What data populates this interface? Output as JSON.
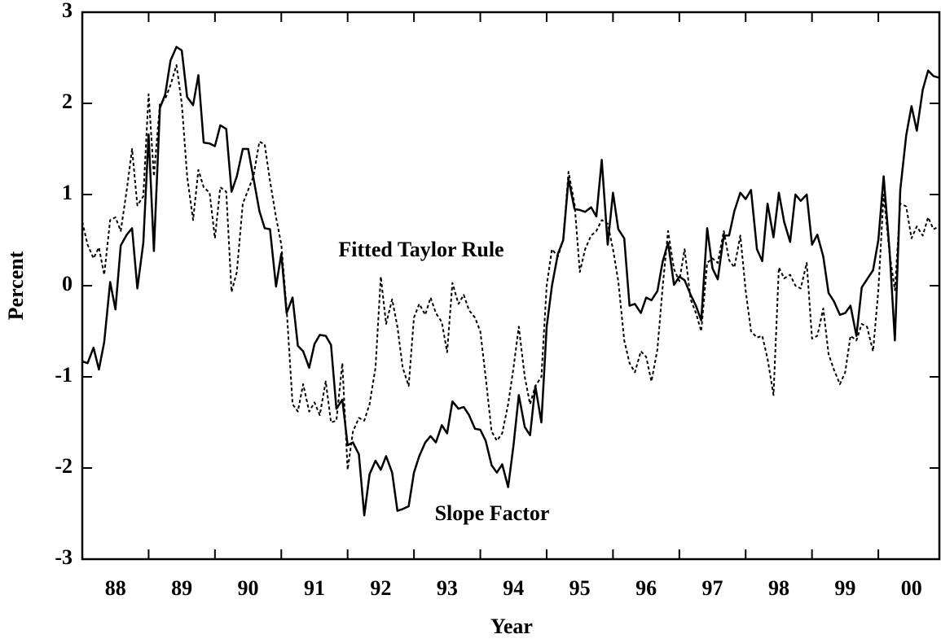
{
  "chart_data": {
    "type": "line",
    "xlabel": "Year",
    "ylabel": "Percent",
    "annotations": [
      {
        "text": "Fitted Taylor Rule"
      },
      {
        "text": "Slope Factor"
      }
    ],
    "x": [
      1988.0,
      1988.08,
      1988.17,
      1988.25,
      1988.33,
      1988.42,
      1988.5,
      1988.58,
      1988.67,
      1988.75,
      1988.83,
      1988.92,
      1989.0,
      1989.08,
      1989.17,
      1989.25,
      1989.33,
      1989.42,
      1989.5,
      1989.58,
      1989.67,
      1989.75,
      1989.83,
      1989.92,
      1990.0,
      1990.08,
      1990.17,
      1990.25,
      1990.33,
      1990.42,
      1990.5,
      1990.58,
      1990.67,
      1990.75,
      1990.83,
      1990.92,
      1991.0,
      1991.08,
      1991.17,
      1991.25,
      1991.33,
      1991.42,
      1991.5,
      1991.58,
      1991.67,
      1991.75,
      1991.83,
      1991.92,
      1992.0,
      1992.08,
      1992.17,
      1992.25,
      1992.33,
      1992.42,
      1992.5,
      1992.58,
      1992.67,
      1992.75,
      1992.83,
      1992.92,
      1993.0,
      1993.08,
      1993.17,
      1993.25,
      1993.33,
      1993.42,
      1993.5,
      1993.58,
      1993.67,
      1993.75,
      1993.83,
      1993.92,
      1994.0,
      1994.08,
      1994.17,
      1994.25,
      1994.33,
      1994.42,
      1994.5,
      1994.58,
      1994.67,
      1994.75,
      1994.83,
      1994.92,
      1995.0,
      1995.08,
      1995.17,
      1995.25,
      1995.33,
      1995.42,
      1995.5,
      1995.58,
      1995.67,
      1995.75,
      1995.83,
      1995.92,
      1996.0,
      1996.08,
      1996.17,
      1996.25,
      1996.33,
      1996.42,
      1996.5,
      1996.58,
      1996.67,
      1996.75,
      1996.83,
      1996.92,
      1997.0,
      1997.08,
      1997.17,
      1997.25,
      1997.33,
      1997.42,
      1997.5,
      1997.58,
      1997.67,
      1997.75,
      1997.83,
      1997.92,
      1998.0,
      1998.08,
      1998.17,
      1998.25,
      1998.33,
      1998.42,
      1998.5,
      1998.58,
      1998.67,
      1998.75,
      1998.83,
      1998.92,
      1999.0,
      1999.08,
      1999.17,
      1999.25,
      1999.33,
      1999.42,
      1999.5,
      1999.58,
      1999.67,
      1999.75,
      1999.83,
      1999.92,
      2000.0,
      2000.08,
      2000.17,
      2000.25,
      2000.33,
      2000.42,
      2000.5,
      2000.58,
      2000.67,
      2000.75,
      2000.83,
      2000.92
    ],
    "series": [
      {
        "name": "Slope Factor",
        "color": "#000000",
        "line_style": "solid",
        "values": [
          -0.83,
          -0.85,
          -0.68,
          -0.92,
          -0.62,
          0.04,
          -0.26,
          0.44,
          0.56,
          0.63,
          -0.03,
          0.47,
          1.66,
          0.38,
          1.95,
          2.1,
          2.47,
          2.62,
          2.58,
          2.07,
          1.98,
          2.31,
          1.57,
          1.56,
          1.53,
          1.76,
          1.72,
          1.03,
          1.2,
          1.5,
          1.5,
          1.18,
          0.82,
          0.63,
          0.62,
          -0.01,
          0.35,
          -0.3,
          -0.13,
          -0.66,
          -0.72,
          -0.9,
          -0.64,
          -0.54,
          -0.55,
          -0.65,
          -1.35,
          -1.25,
          -1.75,
          -1.72,
          -1.85,
          -2.52,
          -2.07,
          -1.92,
          -2.02,
          -1.87,
          -2.05,
          -2.47,
          -2.45,
          -2.42,
          -2.05,
          -1.87,
          -1.72,
          -1.65,
          -1.72,
          -1.53,
          -1.62,
          -1.27,
          -1.35,
          -1.33,
          -1.42,
          -1.57,
          -1.58,
          -1.7,
          -1.97,
          -2.05,
          -1.96,
          -2.21,
          -1.75,
          -1.2,
          -1.55,
          -1.64,
          -1.1,
          -1.5,
          -0.45,
          0.0,
          0.35,
          0.5,
          1.17,
          0.84,
          0.83,
          0.81,
          0.86,
          0.76,
          1.38,
          0.45,
          1.02,
          0.62,
          0.52,
          -0.22,
          -0.2,
          -0.3,
          -0.13,
          -0.16,
          -0.06,
          0.27,
          0.47,
          0.01,
          0.1,
          0.06,
          -0.1,
          -0.22,
          -0.38,
          0.63,
          0.19,
          0.07,
          0.55,
          0.55,
          0.82,
          1.02,
          0.95,
          1.05,
          0.4,
          0.27,
          0.9,
          0.53,
          1.02,
          0.7,
          0.48,
          1.0,
          0.93,
          1.0,
          0.45,
          0.56,
          0.32,
          -0.08,
          -0.17,
          -0.32,
          -0.3,
          -0.22,
          -0.55,
          -0.02,
          0.07,
          0.17,
          0.5,
          1.2,
          0.38,
          -0.6,
          1.05,
          1.65,
          1.97,
          1.7,
          2.15,
          2.36,
          2.3,
          2.28
        ]
      },
      {
        "name": "Fitted Taylor Rule",
        "color": "#000000",
        "line_style": "dotted",
        "values": [
          0.7,
          0.45,
          0.3,
          0.42,
          0.12,
          0.72,
          0.75,
          0.6,
          1.05,
          1.5,
          0.88,
          0.98,
          2.1,
          1.2,
          2.0,
          2.05,
          2.2,
          2.42,
          2.0,
          1.2,
          0.72,
          1.27,
          1.08,
          1.02,
          0.52,
          1.08,
          1.03,
          -0.07,
          0.15,
          0.9,
          1.05,
          1.2,
          1.58,
          1.55,
          1.15,
          0.75,
          0.45,
          -0.25,
          -1.3,
          -1.38,
          -1.08,
          -1.38,
          -1.28,
          -1.42,
          -1.05,
          -1.5,
          -1.48,
          -0.85,
          -2.02,
          -1.6,
          -1.45,
          -1.48,
          -1.3,
          -0.9,
          0.1,
          -0.42,
          -0.15,
          -0.45,
          -0.9,
          -1.1,
          -0.35,
          -0.2,
          -0.32,
          -0.13,
          -0.3,
          -0.4,
          -0.73,
          0.03,
          -0.2,
          -0.1,
          -0.27,
          -0.35,
          -0.5,
          -1.0,
          -1.6,
          -1.7,
          -1.62,
          -1.3,
          -0.9,
          -0.45,
          -1.0,
          -1.3,
          -1.1,
          -1.0,
          0.0,
          0.4,
          0.32,
          0.5,
          1.25,
          0.9,
          0.15,
          0.4,
          0.55,
          0.6,
          0.72,
          0.68,
          0.4,
          0.05,
          -0.6,
          -0.85,
          -0.95,
          -0.72,
          -0.78,
          -1.05,
          -0.7,
          0.0,
          0.6,
          0.18,
          0.05,
          0.4,
          -0.15,
          -0.3,
          -0.5,
          0.25,
          0.3,
          0.25,
          0.6,
          0.28,
          0.2,
          0.55,
          -0.05,
          -0.5,
          -0.57,
          -0.55,
          -0.8,
          -1.2,
          0.2,
          0.08,
          0.12,
          0.0,
          -0.03,
          0.25,
          -0.58,
          -0.55,
          -0.25,
          -0.75,
          -0.92,
          -1.08,
          -0.95,
          -0.55,
          -0.6,
          -0.42,
          -0.45,
          -0.72,
          -0.05,
          1.0,
          0.35,
          -0.05,
          0.9,
          0.87,
          0.52,
          0.65,
          0.55,
          0.75,
          0.62,
          0.65
        ]
      }
    ],
    "xlim": [
      1988,
      2000.92
    ],
    "xticks": [
      {
        "value": 1988.5,
        "label": "88"
      },
      {
        "value": 1989.5,
        "label": "89"
      },
      {
        "value": 1990.5,
        "label": "90"
      },
      {
        "value": 1991.5,
        "label": "91"
      },
      {
        "value": 1992.5,
        "label": "92"
      },
      {
        "value": 1993.5,
        "label": "93"
      },
      {
        "value": 1994.5,
        "label": "94"
      },
      {
        "value": 1995.5,
        "label": "95"
      },
      {
        "value": 1996.5,
        "label": "96"
      },
      {
        "value": 1997.5,
        "label": "97"
      },
      {
        "value": 1998.5,
        "label": "98"
      },
      {
        "value": 1999.5,
        "label": "99"
      },
      {
        "value": 2000.5,
        "label": "00"
      }
    ],
    "ylim": [
      -3,
      3
    ],
    "yticks": [
      -3,
      -2,
      -1,
      0,
      1,
      2,
      3
    ],
    "grid": false
  }
}
